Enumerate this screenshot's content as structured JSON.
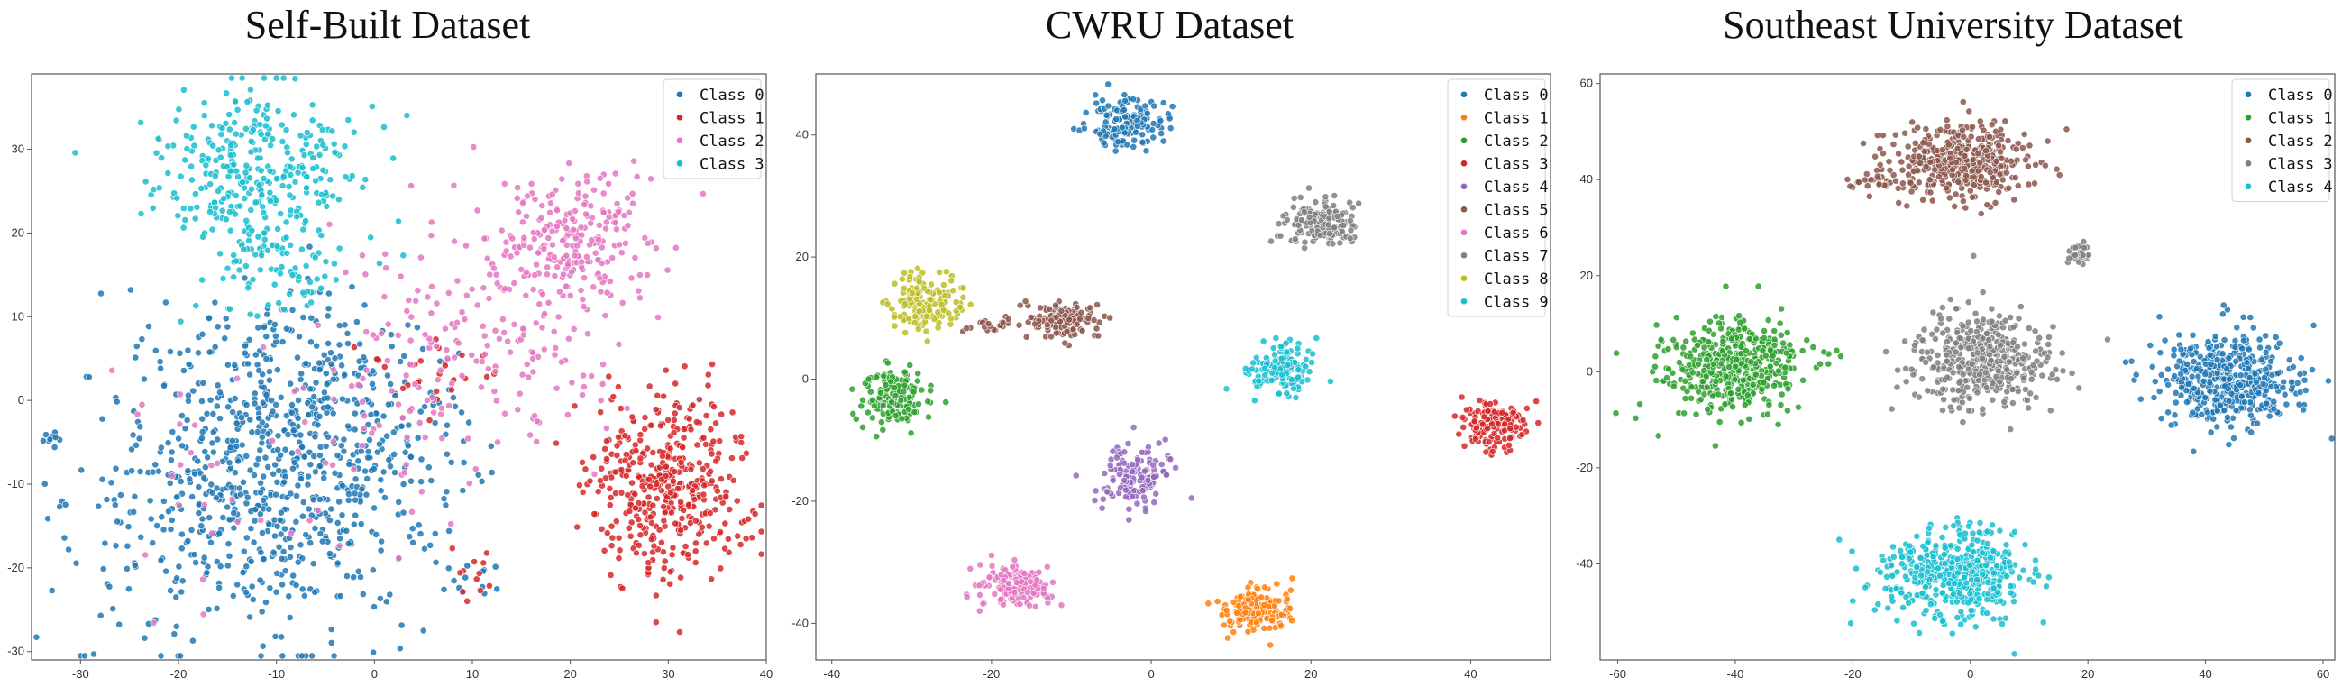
{
  "colors": {
    "blue": "#1f77b4",
    "orange": "#ff7f0e",
    "green": "#2ca02c",
    "red": "#d62728",
    "purple": "#9467bd",
    "brown": "#8c564b",
    "pink": "#e377c2",
    "gray": "#7f7f7f",
    "olive": "#bcbd22",
    "cyan": "#17becf"
  },
  "chart_data": [
    {
      "type": "scatter",
      "title": "Self-Built Dataset",
      "xlim": [
        -35,
        40
      ],
      "ylim": [
        -31,
        39
      ],
      "xticks": [
        -30,
        -20,
        -10,
        0,
        10,
        20,
        30,
        40
      ],
      "yticks": [
        -30,
        -20,
        -10,
        0,
        10,
        20,
        30
      ],
      "legend_position": "top-right",
      "grid": false,
      "series": [
        {
          "name": "Class 0",
          "color": "#1f77b4",
          "clusters": [
            {
              "cx": -12,
              "cy": -12,
              "sx": 9,
              "sy": 8,
              "n": 560
            },
            {
              "cx": -3,
              "cy": -3,
              "sx": 7,
              "sy": 6,
              "n": 200
            },
            {
              "cx": -10,
              "cy": 5,
              "sx": 6,
              "sy": 5,
              "n": 130
            },
            {
              "cx": -33,
              "cy": -4.5,
              "sx": 0.6,
              "sy": 0.6,
              "n": 10
            },
            {
              "cx": 10,
              "cy": -21,
              "sx": 1.8,
              "sy": 1.5,
              "n": 14
            }
          ]
        },
        {
          "name": "Class 1",
          "color": "#d62728",
          "clusters": [
            {
              "cx": 30,
              "cy": -10,
              "sx": 4.2,
              "sy": 5.5,
              "n": 430
            },
            {
              "cx": 6,
              "cy": 3,
              "sx": 3,
              "sy": 2,
              "n": 25
            },
            {
              "cx": 10,
              "cy": -20,
              "sx": 2,
              "sy": 2,
              "n": 12
            }
          ]
        },
        {
          "name": "Class 2",
          "color": "#e377c2",
          "clusters": [
            {
              "cx": 21,
              "cy": 19,
              "sx": 4,
              "sy": 4,
              "n": 210
            },
            {
              "cx": 14,
              "cy": 10,
              "sx": 6,
              "sy": 7,
              "n": 150
            },
            {
              "cx": 2,
              "cy": 5,
              "sx": 6,
              "sy": 8,
              "n": 70
            },
            {
              "cx": -12,
              "cy": -10,
              "sx": 8,
              "sy": 8,
              "n": 40
            }
          ]
        },
        {
          "name": "Class 3",
          "color": "#17becf",
          "clusters": [
            {
              "cx": -12,
              "cy": 27,
              "sx": 5,
              "sy": 5,
              "n": 340
            },
            {
              "cx": -10,
              "cy": 15,
              "sx": 3.5,
              "sy": 4,
              "n": 60
            }
          ]
        }
      ]
    },
    {
      "type": "scatter",
      "title": "CWRU Dataset",
      "xlim": [
        -42,
        50
      ],
      "ylim": [
        -46,
        50
      ],
      "xticks": [
        -40,
        -20,
        0,
        20,
        40
      ],
      "yticks": [
        -40,
        -20,
        0,
        20,
        40
      ],
      "legend_position": "top-right",
      "grid": false,
      "series": [
        {
          "name": "Class 0",
          "color": "#1f77b4",
          "clusters": [
            {
              "cx": -3,
              "cy": 42,
              "sx": 2.3,
              "sy": 2,
              "n": 150
            }
          ]
        },
        {
          "name": "Class 1",
          "color": "#ff7f0e",
          "clusters": [
            {
              "cx": 13,
              "cy": -37.5,
              "sx": 2.3,
              "sy": 2,
              "n": 150
            }
          ]
        },
        {
          "name": "Class 2",
          "color": "#2ca02c",
          "clusters": [
            {
              "cx": -32,
              "cy": -3,
              "sx": 2,
              "sy": 2.3,
              "n": 150
            }
          ]
        },
        {
          "name": "Class 3",
          "color": "#d62728",
          "clusters": [
            {
              "cx": 43,
              "cy": -7.5,
              "sx": 2,
              "sy": 2.2,
              "n": 150
            }
          ]
        },
        {
          "name": "Class 4",
          "color": "#9467bd",
          "clusters": [
            {
              "cx": -2,
              "cy": -16,
              "sx": 2.2,
              "sy": 2.5,
              "n": 150
            }
          ]
        },
        {
          "name": "Class 5",
          "color": "#8c564b",
          "clusters": [
            {
              "cx": -11,
              "cy": 9.5,
              "sx": 2.2,
              "sy": 1.4,
              "n": 130
            },
            {
              "cx": -20,
              "cy": 9,
              "sx": 2,
              "sy": 0.7,
              "n": 20
            }
          ]
        },
        {
          "name": "Class 6",
          "color": "#e377c2",
          "clusters": [
            {
              "cx": -17,
              "cy": -34,
              "sx": 2.3,
              "sy": 1.8,
              "n": 150
            }
          ]
        },
        {
          "name": "Class 7",
          "color": "#7f7f7f",
          "clusters": [
            {
              "cx": 21,
              "cy": 25.5,
              "sx": 2.2,
              "sy": 2,
              "n": 150
            }
          ]
        },
        {
          "name": "Class 8",
          "color": "#bcbd22",
          "clusters": [
            {
              "cx": -28,
              "cy": 12.5,
              "sx": 2.3,
              "sy": 2.3,
              "n": 150
            }
          ]
        },
        {
          "name": "Class 9",
          "color": "#17becf",
          "clusters": [
            {
              "cx": 16,
              "cy": 1.5,
              "sx": 2.2,
              "sy": 2,
              "n": 150
            }
          ]
        }
      ]
    },
    {
      "type": "scatter",
      "title": "Southeast University Dataset",
      "xlim": [
        -63,
        62
      ],
      "ylim": [
        -60,
        62
      ],
      "xticks": [
        -60,
        -40,
        -20,
        0,
        20,
        40,
        60
      ],
      "yticks": [
        -40,
        -20,
        0,
        20,
        40,
        60
      ],
      "legend_position": "top-right",
      "grid": false,
      "series": [
        {
          "name": "Class 0",
          "color": "#1f77b4",
          "clusters": [
            {
              "cx": 44,
              "cy": -2,
              "sx": 6,
              "sy": 5,
              "n": 460
            }
          ]
        },
        {
          "name": "Class 1",
          "color": "#2ca02c",
          "clusters": [
            {
              "cx": -40,
              "cy": 1,
              "sx": 6,
              "sy": 5,
              "n": 460
            }
          ]
        },
        {
          "name": "Class 2",
          "color": "#8c564b",
          "clusters": [
            {
              "cx": -2,
              "cy": 44,
              "sx": 6,
              "sy": 4,
              "n": 420
            },
            {
              "cx": -16,
              "cy": 39.5,
              "sx": 3,
              "sy": 0.8,
              "n": 25
            }
          ]
        },
        {
          "name": "Class 3",
          "color": "#7f7f7f",
          "clusters": [
            {
              "cx": 2,
              "cy": 2,
              "sx": 6,
              "sy": 5,
              "n": 420
            },
            {
              "cx": 18.5,
              "cy": 24.5,
              "sx": 1,
              "sy": 1.2,
              "n": 30
            }
          ]
        },
        {
          "name": "Class 4",
          "color": "#17becf",
          "clusters": [
            {
              "cx": -3,
              "cy": -42,
              "sx": 6,
              "sy": 4.5,
              "n": 460
            }
          ]
        }
      ]
    }
  ]
}
